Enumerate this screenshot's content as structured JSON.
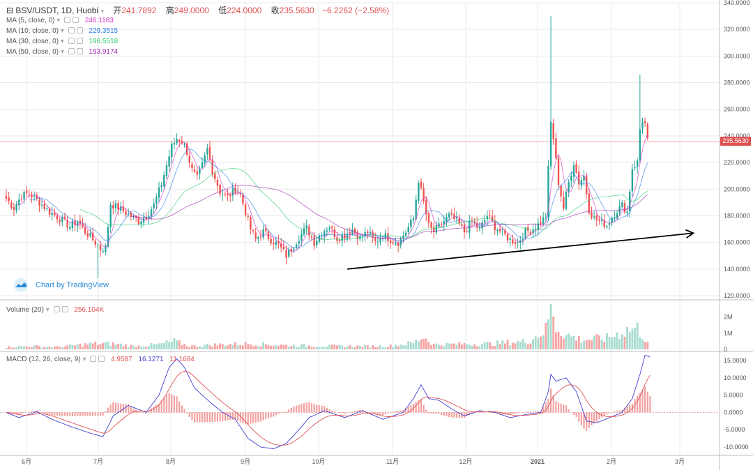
{
  "header": {
    "symbol": "BSV/USDT, 1D, Huobi",
    "open_label": "开",
    "open": "241.7892",
    "high_label": "高",
    "high": "249.0000",
    "low_label": "低",
    "low": "224.0000",
    "close_label": "收",
    "close": "235.5630",
    "change": "−6.2262 (−2.58%)"
  },
  "indicators": {
    "ma5": {
      "label": "MA (5, close, 0)",
      "value": "246.1183",
      "color": "#d633c8"
    },
    "ma10": {
      "label": "MA (10, close, 0)",
      "value": "229.3515",
      "color": "#2b7de9"
    },
    "ma30": {
      "label": "MA (30, close, 0)",
      "value": "196.5518",
      "color": "#2ecc71"
    },
    "ma50": {
      "label": "MA (50, close, 0)",
      "value": "193.9174",
      "color": "#9c27b0"
    },
    "volume": {
      "label": "Volume (20)",
      "value": "256.104K",
      "color": "#e05252"
    },
    "macd": {
      "label": "MACD (12, 26, close, 9)",
      "hist": "4.9587",
      "macd": "16.1271",
      "signal": "11.1684",
      "hist_color": "#e05252",
      "macd_color": "#3f3fd1",
      "signal_color": "#e05252"
    }
  },
  "branding": {
    "text": "Chart by TradingView"
  },
  "last_price_tag": "235.5630",
  "colors": {
    "up": "#26a69a",
    "down": "#ef5350",
    "up_light": "#a6dccf",
    "down_light": "#f5a3a3",
    "trendline": "#000000",
    "grid": "#e9e9e9"
  },
  "chart_data": {
    "type": "candlestick",
    "price_axis": {
      "ticks": [
        "340.0000",
        "320.0000",
        "300.0000",
        "280.0000",
        "260.0000",
        "240.0000",
        "220.0000",
        "200.0000",
        "180.0000",
        "160.0000",
        "140.0000",
        "120.0000"
      ],
      "range": [
        120,
        340
      ]
    },
    "volume_axis": {
      "ticks": [
        "2M",
        "1M",
        "0"
      ],
      "range": [
        0,
        2.8
      ]
    },
    "macd_axis": {
      "ticks": [
        "15.0000",
        "10.0000",
        "5.0000",
        "0.0000",
        "-5.0000",
        "-10.0000"
      ],
      "range": [
        -12,
        17
      ]
    },
    "x_labels": [
      "6月",
      "7月",
      "8月",
      "9月",
      "10月",
      "11月",
      "12月",
      "2021",
      "2月",
      "3月"
    ],
    "anchors": [
      [
        0,
        193
      ],
      [
        3,
        186
      ],
      [
        6,
        195
      ],
      [
        9,
        197
      ],
      [
        13,
        190
      ],
      [
        17,
        183
      ],
      [
        21,
        178
      ],
      [
        25,
        172
      ],
      [
        28,
        176
      ],
      [
        31,
        168
      ],
      [
        35,
        160
      ],
      [
        37,
        155
      ],
      [
        39,
        156
      ],
      [
        41,
        189
      ],
      [
        44,
        186
      ],
      [
        48,
        181
      ],
      [
        52,
        176
      ],
      [
        55,
        180
      ],
      [
        58,
        188
      ],
      [
        61,
        204
      ],
      [
        63,
        218
      ],
      [
        65,
        232
      ],
      [
        67,
        238
      ],
      [
        69,
        236
      ],
      [
        71,
        228
      ],
      [
        73,
        214
      ],
      [
        75,
        208
      ],
      [
        77,
        218
      ],
      [
        79,
        230
      ],
      [
        81,
        214
      ],
      [
        84,
        198
      ],
      [
        87,
        194
      ],
      [
        90,
        200
      ],
      [
        92,
        196
      ],
      [
        94,
        183
      ],
      [
        96,
        170
      ],
      [
        98,
        162
      ],
      [
        101,
        168
      ],
      [
        104,
        162
      ],
      [
        107,
        158
      ],
      [
        110,
        150
      ],
      [
        112,
        155
      ],
      [
        115,
        164
      ],
      [
        118,
        171
      ],
      [
        121,
        160
      ],
      [
        124,
        168
      ],
      [
        127,
        172
      ],
      [
        130,
        163
      ],
      [
        133,
        166
      ],
      [
        136,
        170
      ],
      [
        139,
        163
      ],
      [
        142,
        168
      ],
      [
        145,
        160
      ],
      [
        148,
        166
      ],
      [
        151,
        162
      ],
      [
        154,
        160
      ],
      [
        157,
        168
      ],
      [
        160,
        178
      ],
      [
        162,
        207
      ],
      [
        164,
        190
      ],
      [
        166,
        172
      ],
      [
        168,
        168
      ],
      [
        171,
        174
      ],
      [
        174,
        180
      ],
      [
        177,
        176
      ],
      [
        180,
        168
      ],
      [
        183,
        176
      ],
      [
        186,
        170
      ],
      [
        189,
        180
      ],
      [
        192,
        172
      ],
      [
        195,
        167
      ],
      [
        198,
        162
      ],
      [
        201,
        160
      ],
      [
        204,
        168
      ],
      [
        207,
        170
      ],
      [
        210,
        175
      ],
      [
        212,
        180
      ],
      [
        214,
        250
      ],
      [
        215,
        238
      ],
      [
        217,
        205
      ],
      [
        219,
        186
      ],
      [
        221,
        205
      ],
      [
        223,
        220
      ],
      [
        225,
        205
      ],
      [
        227,
        210
      ],
      [
        229,
        185
      ],
      [
        231,
        178
      ],
      [
        233,
        176
      ],
      [
        236,
        173
      ],
      [
        239,
        182
      ],
      [
        242,
        188
      ],
      [
        244,
        183
      ],
      [
        246,
        216
      ],
      [
        248,
        220
      ],
      [
        249,
        245
      ],
      [
        250,
        252
      ],
      [
        251,
        249
      ],
      [
        252,
        236
      ]
    ],
    "ma": [
      {
        "name": "MA (5, close, 0)"
      },
      {
        "name": "MA (10, close, 0)"
      },
      {
        "name": "MA (30, close, 0)"
      },
      {
        "name": "MA (50, close, 0)"
      }
    ],
    "volume": [
      [
        0,
        0.15
      ],
      [
        10,
        0.2
      ],
      [
        20,
        0.15
      ],
      [
        34,
        0.35
      ],
      [
        42,
        0.35
      ],
      [
        50,
        0.2
      ],
      [
        60,
        0.3
      ],
      [
        66,
        0.5
      ],
      [
        72,
        0.2
      ],
      [
        84,
        0.3
      ],
      [
        96,
        0.35
      ],
      [
        110,
        0.25
      ],
      [
        130,
        0.2
      ],
      [
        150,
        0.2
      ],
      [
        160,
        0.4
      ],
      [
        164,
        0.8
      ],
      [
        168,
        0.3
      ],
      [
        190,
        0.35
      ],
      [
        205,
        0.5
      ],
      [
        212,
        1.2
      ],
      [
        214,
        2.8
      ],
      [
        215,
        2.2
      ],
      [
        216,
        1.4
      ],
      [
        220,
        0.9
      ],
      [
        226,
        0.6
      ],
      [
        236,
        0.7
      ],
      [
        244,
        1.2
      ],
      [
        248,
        1.3
      ],
      [
        252,
        0.5
      ]
    ],
    "macd": [
      [
        0,
        0
      ],
      [
        5,
        -1.5
      ],
      [
        12,
        0.2
      ],
      [
        18,
        -2
      ],
      [
        25,
        -4
      ],
      [
        33,
        -6
      ],
      [
        38,
        -7
      ],
      [
        42,
        -1
      ],
      [
        48,
        2
      ],
      [
        55,
        0
      ],
      [
        60,
        5
      ],
      [
        64,
        13
      ],
      [
        67,
        15.5
      ],
      [
        70,
        13
      ],
      [
        74,
        7
      ],
      [
        80,
        3
      ],
      [
        85,
        0
      ],
      [
        90,
        -2
      ],
      [
        95,
        -7.5
      ],
      [
        100,
        -10
      ],
      [
        105,
        -10.5
      ],
      [
        110,
        -9
      ],
      [
        115,
        -5
      ],
      [
        119,
        -1.5
      ],
      [
        125,
        0.5
      ],
      [
        133,
        -1.5
      ],
      [
        140,
        0.5
      ],
      [
        148,
        -2
      ],
      [
        156,
        0
      ],
      [
        160,
        4
      ],
      [
        163,
        8
      ],
      [
        166,
        4
      ],
      [
        170,
        3.5
      ],
      [
        175,
        1
      ],
      [
        180,
        -1
      ],
      [
        186,
        0.5
      ],
      [
        192,
        0
      ],
      [
        198,
        -1.5
      ],
      [
        205,
        -0.5
      ],
      [
        210,
        0
      ],
      [
        213,
        6
      ],
      [
        214,
        11
      ],
      [
        216,
        9
      ],
      [
        220,
        10
      ],
      [
        224,
        6
      ],
      [
        228,
        -2.5
      ],
      [
        232,
        -3
      ],
      [
        237,
        -1.5
      ],
      [
        242,
        0
      ],
      [
        246,
        4
      ],
      [
        249,
        11
      ],
      [
        251,
        16.5
      ],
      [
        253,
        16
      ]
    ],
    "macd_signal": "MACD signal line",
    "histogram": "MACD histogram",
    "trendline": {
      "from_day": 134,
      "from_price": 140,
      "to_day": 270,
      "to_price": 167
    }
  }
}
